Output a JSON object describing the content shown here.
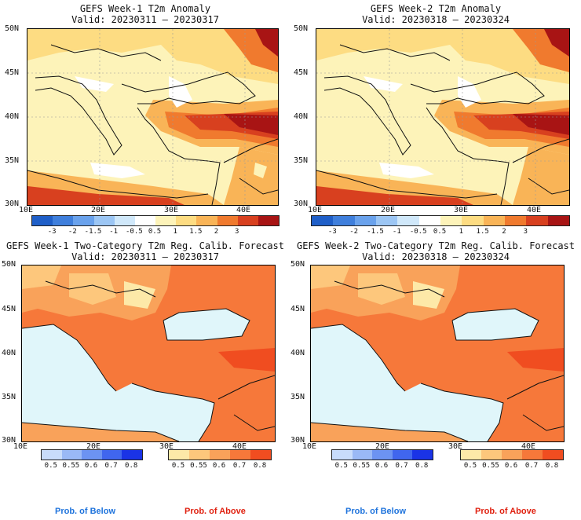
{
  "panels": [
    {
      "title": "GEFS Week-1 T2m Anomaly",
      "valid": "Valid: 20230311 – 20230317",
      "kind": "anomaly"
    },
    {
      "title": "GEFS Week-2 T2m Anomaly",
      "valid": "Valid: 20230318 – 20230324",
      "kind": "anomaly"
    },
    {
      "title": "GEFS Week-1 Two-Category T2m Reg. Calib. Forecast",
      "valid": "Valid: 20230311 – 20230317",
      "kind": "prob"
    },
    {
      "title": "GEFS Week-2 Two-Category T2m Reg. Calib. Forecast",
      "valid": "Valid: 20230318 – 20230324",
      "kind": "prob"
    }
  ],
  "lat_labels": [
    "50N",
    "45N",
    "40N",
    "35N",
    "30N"
  ],
  "lon_labels": [
    "10E",
    "20E",
    "30E",
    "40E"
  ],
  "anomaly_scale": {
    "labels": [
      "-3",
      "-2",
      "-1.5",
      "-1",
      "-0.5",
      "0.5",
      "1",
      "1.5",
      "2",
      "3"
    ],
    "colors": [
      "#1f5fc8",
      "#3f7fdc",
      "#6aa2ec",
      "#9cc6f4",
      "#d0e8fa",
      "#ffffff",
      "#fdf3b9",
      "#fddc82",
      "#f9b457",
      "#f07a2e",
      "#d8401f",
      "#a81414"
    ]
  },
  "below_scale": {
    "labels": [
      "0.5",
      "0.55",
      "0.6",
      "0.7",
      "0.8"
    ],
    "colors": [
      "#c8dcfb",
      "#9ab9f6",
      "#6c93f2",
      "#4066ee",
      "#1a33e6"
    ]
  },
  "above_scale": {
    "labels": [
      "0.5",
      "0.55",
      "0.6",
      "0.7",
      "0.8"
    ],
    "colors": [
      "#fde9a8",
      "#fdc77c",
      "#f9a25a",
      "#f6783a",
      "#f04d20"
    ]
  },
  "captions": {
    "below": "Prob. of Below",
    "above": "Prob. of Above",
    "below_color": "#1e73dc",
    "above_color": "#e0200f"
  }
}
